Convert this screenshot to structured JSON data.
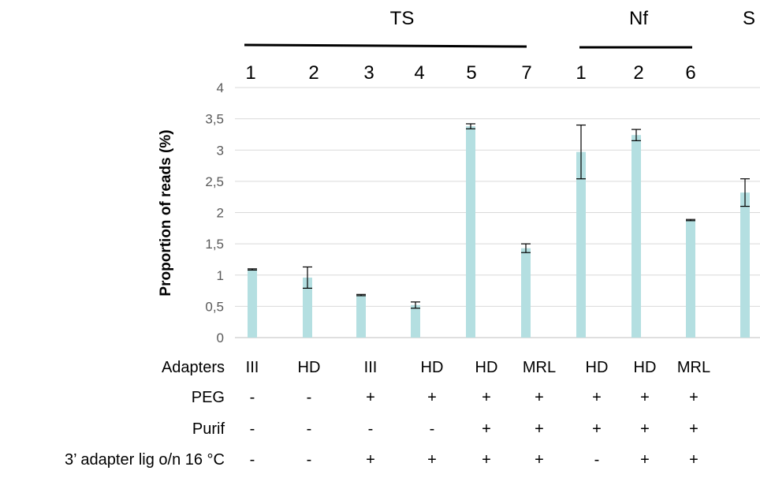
{
  "chart_data": {
    "type": "bar",
    "ylabel": "Proportion of reads (%)",
    "ylim": [
      0,
      4
    ],
    "yticks": [
      "0",
      "0,5",
      "1",
      "1,5",
      "2",
      "2,5",
      "3",
      "3,5",
      "4"
    ],
    "ytick_values": [
      0,
      0.5,
      1,
      1.5,
      2,
      2.5,
      3,
      3.5,
      4
    ],
    "grid": true,
    "bar_color": "#b4dfe1",
    "gridline_color": "#d9d9d9",
    "groups": [
      {
        "label": "TS",
        "lanes": [
          "1",
          "2",
          "3",
          "4",
          "5",
          "7"
        ]
      },
      {
        "label": "Nf",
        "lanes": [
          "1",
          "2",
          "6"
        ]
      },
      {
        "label": "S",
        "lanes": []
      }
    ],
    "categories": [
      "TS 1",
      "TS 2",
      "TS 3",
      "TS 4",
      "TS 5",
      "TS 7",
      "Nf 1",
      "Nf 2",
      "Nf 6",
      "S"
    ],
    "values": [
      1.09,
      0.96,
      0.68,
      0.52,
      3.38,
      1.43,
      2.97,
      3.24,
      1.88,
      2.32
    ],
    "error": [
      0.01,
      0.17,
      0.01,
      0.05,
      0.04,
      0.07,
      0.43,
      0.09,
      0.01,
      0.22
    ],
    "table": {
      "rows": [
        {
          "label": "Adapters",
          "values": [
            "III",
            "HD",
            "III",
            "HD",
            "HD",
            "MRL",
            "HD",
            "HD",
            "MRL",
            ""
          ]
        },
        {
          "label": "PEG",
          "values": [
            "-",
            "-",
            "+",
            "+",
            "+",
            "+",
            "+",
            "+",
            "+",
            ""
          ]
        },
        {
          "label": "Purif",
          "values": [
            "-",
            "-",
            "-",
            "-",
            "+",
            "+",
            "+",
            "+",
            "+",
            ""
          ]
        },
        {
          "label": "3’ adapter lig o/n 16 °C",
          "values": [
            "-",
            "-",
            "+",
            "+",
            "+",
            "+",
            "-",
            "+",
            "+",
            ""
          ]
        }
      ]
    }
  }
}
